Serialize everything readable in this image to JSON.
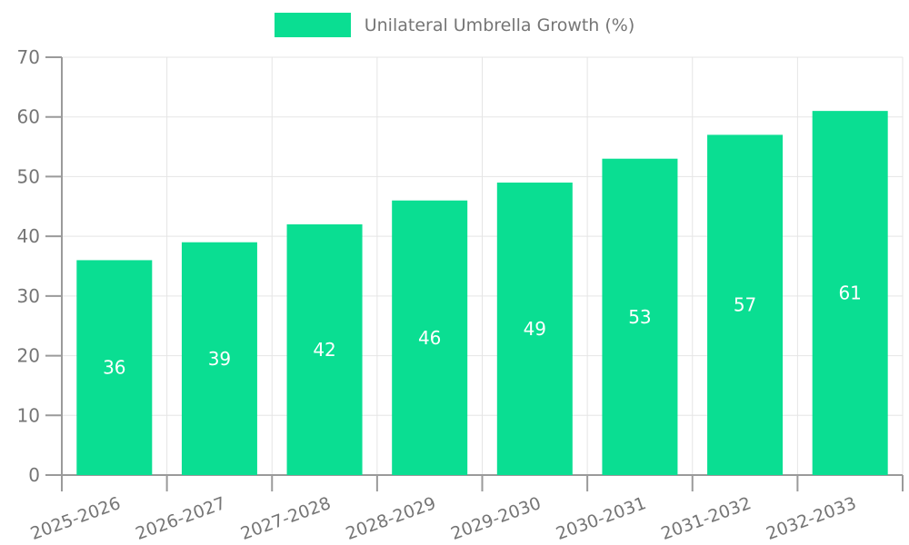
{
  "legend": {
    "position": "top"
  },
  "chart_data": {
    "type": "bar",
    "title": "Unilateral Umbrella Growth (%)",
    "series_name": "Unilateral Umbrella Growth (%)",
    "categories": [
      "2025-2026",
      "2026-2027",
      "2027-2028",
      "2028-2029",
      "2029-2030",
      "2030-2031",
      "2031-2032",
      "2032-2033"
    ],
    "values": [
      36,
      39,
      42,
      46,
      49,
      53,
      57,
      61
    ],
    "xlabel": "",
    "ylabel": "",
    "ylim": [
      0,
      70
    ],
    "yticks": [
      0,
      10,
      20,
      30,
      40,
      50,
      60,
      70
    ],
    "grid": "on",
    "legend_position": "top",
    "bar_color": "#0ade92",
    "value_label_color": "#ffffff",
    "axis_text_color": "#757575",
    "axis_line_color": "#9a9a9a",
    "grid_color": "#e5e5e5"
  }
}
